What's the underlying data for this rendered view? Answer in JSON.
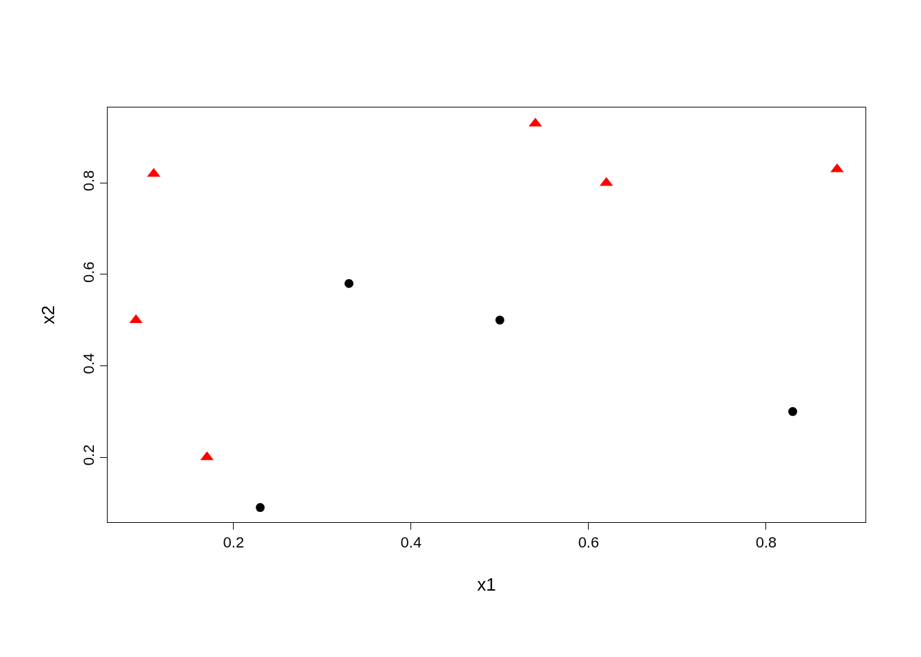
{
  "chart_data": {
    "type": "scatter",
    "xlabel": "x1",
    "ylabel": "x2",
    "xlim": [
      0.058,
      0.912
    ],
    "ylim": [
      0.058,
      0.965
    ],
    "xticks": [
      0.2,
      0.4,
      0.6,
      0.8
    ],
    "yticks": [
      0.2,
      0.4,
      0.6,
      0.8
    ],
    "grid": false,
    "series": [
      {
        "color": "#000000",
        "marker": "circle",
        "x": [
          0.23,
          0.33,
          0.5,
          0.83
        ],
        "values": [
          0.09,
          0.58,
          0.5,
          0.3
        ]
      },
      {
        "color": "#ff0000",
        "marker": "triangle",
        "x": [
          0.09,
          0.11,
          0.17,
          0.54,
          0.62,
          0.88
        ],
        "values": [
          0.5,
          0.82,
          0.2,
          0.93,
          0.8,
          0.83
        ]
      }
    ]
  }
}
